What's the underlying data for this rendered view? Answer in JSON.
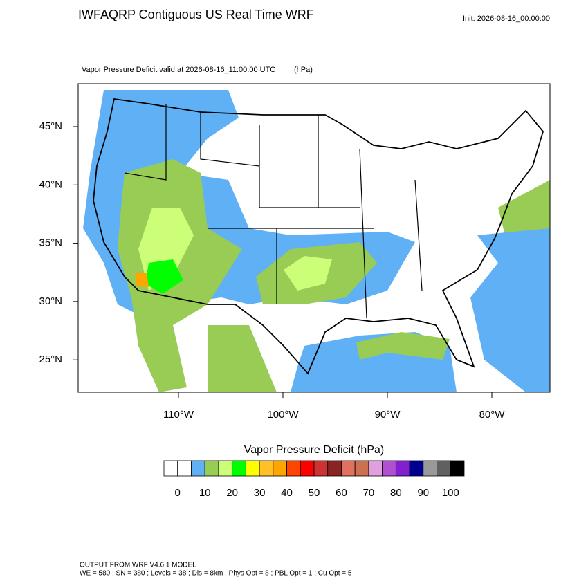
{
  "header": {
    "title": "IWFAQRP Contiguous US Real Time WRF",
    "init": "Init: 2026-08-16_00:00:00"
  },
  "map": {
    "subtitle": "Vapor Pressure Deficit valid at 2026-08-16_11:00:00 UTC",
    "units": "(hPa)",
    "lat_labels": [
      "45°N",
      "40°N",
      "35°N",
      "30°N",
      "25°N"
    ],
    "lon_labels": [
      "110°W",
      "100°W",
      "90°W",
      "80°W"
    ]
  },
  "colorbar": {
    "title": "Vapor Pressure Deficit  (hPa)",
    "colors": [
      "#ffffff",
      "#ffffff",
      "#5fb0f5",
      "#99cc55",
      "#ccff77",
      "#00ff00",
      "#ffff00",
      "#ffc125",
      "#ffa500",
      "#ff4500",
      "#ff0000",
      "#cd3333",
      "#8b2323",
      "#e07060",
      "#cd7050",
      "#e0a0e0",
      "#b050d0",
      "#8020d0",
      "#000090",
      "#999999",
      "#606060",
      "#000000"
    ],
    "labels": [
      "0",
      "10",
      "20",
      "30",
      "40",
      "50",
      "60",
      "70",
      "80",
      "90",
      "100"
    ]
  },
  "footer": {
    "line1": "OUTPUT FROM WRF V4.6.1 MODEL",
    "line2": "WE = 580 ; SN = 380 ; Levels = 38 ; Dis = 8km ; Phys Opt = 8 ; PBL Opt = 1 ; Cu Opt = 5"
  }
}
